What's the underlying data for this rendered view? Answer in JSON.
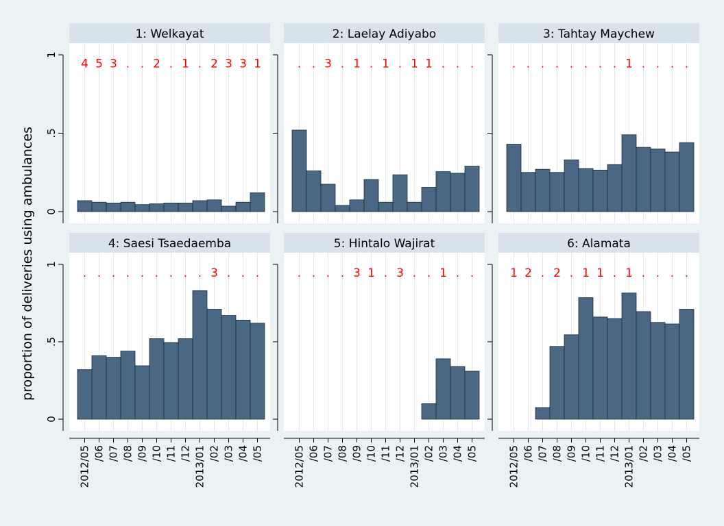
{
  "chart_data": {
    "type": "bar",
    "ylabel": "proportion of deliveries using ambulances",
    "ylim": [
      0,
      1
    ],
    "yticks": [
      {
        "value": 0,
        "label": "0"
      },
      {
        "value": 0.5,
        "label": ".5"
      },
      {
        "value": 1,
        "label": "1"
      }
    ],
    "x_tick_labels": [
      "2012/05",
      "/06",
      "/07",
      "/08",
      "/09",
      "/10",
      "/11",
      "/12",
      "2013/01",
      "/02",
      "/03",
      "/04",
      "/05"
    ],
    "grid": true,
    "colors": {
      "bar": "#4a6784",
      "bar_edge": "#1a2a3a",
      "panel_bg": "#ffffff",
      "title_strip": "#d8e2ea",
      "outer_bg": "#eaf2f3",
      "annotation": "#ff0000",
      "grid": "#e6eaee"
    },
    "panels": [
      {
        "title": "1: Welkayat",
        "values": [
          0.07,
          0.06,
          0.055,
          0.06,
          0.045,
          0.05,
          0.055,
          0.055,
          0.07,
          0.075,
          0.035,
          0.06,
          0.12
        ],
        "annotations": [
          "4",
          "5",
          "3",
          ".",
          ".",
          "2",
          ".",
          "1",
          ".",
          "2",
          "3",
          "3",
          "1"
        ]
      },
      {
        "title": "2: Laelay Adiyabo",
        "values": [
          0.52,
          0.26,
          0.175,
          0.04,
          0.075,
          0.205,
          0.06,
          0.235,
          0.06,
          0.155,
          0.255,
          0.245,
          0.29
        ],
        "annotations": [
          ".",
          ".",
          "3",
          ".",
          "1",
          ".",
          "1",
          ".",
          "1",
          "1",
          ".",
          ".",
          "."
        ]
      },
      {
        "title": "3: Tahtay Maychew",
        "values": [
          0.43,
          0.25,
          0.27,
          0.25,
          0.33,
          0.275,
          0.265,
          0.3,
          0.49,
          0.41,
          0.4,
          0.38,
          0.44
        ],
        "annotations": [
          ".",
          ".",
          ".",
          ".",
          ".",
          ".",
          ".",
          ".",
          "1",
          ".",
          ".",
          ".",
          "."
        ]
      },
      {
        "title": "4: Saesi Tsaedaemba",
        "values": [
          0.32,
          0.41,
          0.4,
          0.44,
          0.345,
          0.52,
          0.495,
          0.52,
          0.83,
          0.71,
          0.67,
          0.64,
          0.62
        ],
        "annotations": [
          ".",
          ".",
          ".",
          ".",
          ".",
          ".",
          ".",
          ".",
          ".",
          "3",
          ".",
          ".",
          "."
        ]
      },
      {
        "title": "5: Hintalo Wajirat",
        "values": [
          null,
          null,
          null,
          null,
          null,
          null,
          null,
          null,
          null,
          0.1,
          0.39,
          0.34,
          0.31
        ],
        "annotations": [
          ".",
          ".",
          ".",
          ".",
          "3",
          "1",
          ".",
          "3",
          ".",
          ".",
          "1",
          ".",
          "."
        ]
      },
      {
        "title": "6: Alamata",
        "values": [
          null,
          null,
          0.075,
          0.47,
          0.545,
          0.785,
          0.66,
          0.65,
          0.815,
          0.695,
          0.625,
          0.615,
          0.71
        ],
        "annotations": [
          "1",
          "2",
          ".",
          "2",
          ".",
          "1",
          "1",
          ".",
          "1",
          ".",
          ".",
          ".",
          "."
        ]
      }
    ]
  }
}
